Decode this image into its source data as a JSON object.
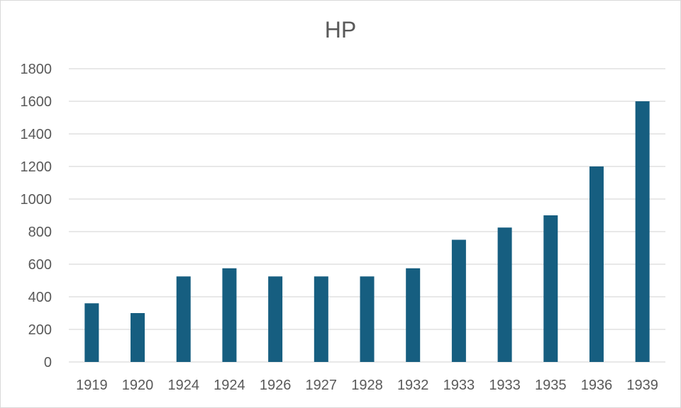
{
  "colors": {
    "bar": "#165E80",
    "gridline": "#d9d9d9",
    "text": "#595959"
  },
  "chart_data": {
    "type": "bar",
    "title": "HP",
    "xlabel": "",
    "ylabel": "",
    "categories": [
      "1919",
      "1920",
      "1924",
      "1924",
      "1926",
      "1927",
      "1928",
      "1932",
      "1933",
      "1933",
      "1935",
      "1936",
      "1939"
    ],
    "values": [
      360,
      300,
      525,
      575,
      525,
      525,
      525,
      575,
      750,
      825,
      900,
      1200,
      1600
    ],
    "ylim": [
      0,
      1800
    ],
    "yticks": [
      0,
      200,
      400,
      600,
      800,
      1000,
      1200,
      1400,
      1600,
      1800
    ],
    "grid": true,
    "legend": "none"
  }
}
